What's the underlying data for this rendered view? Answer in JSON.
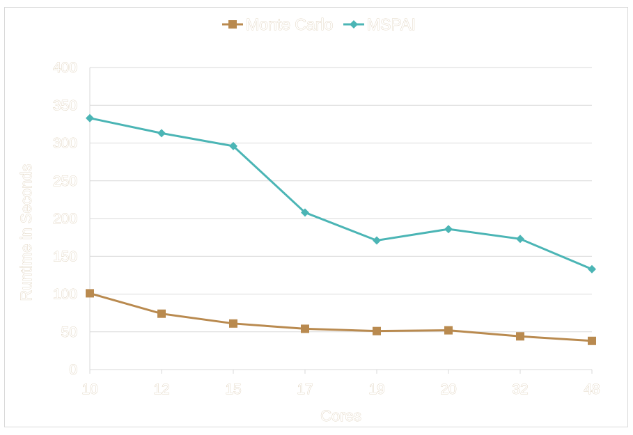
{
  "chart_data": {
    "type": "line",
    "categories": [
      "10",
      "12",
      "15",
      "17",
      "19",
      "20",
      "32",
      "48"
    ],
    "series": [
      {
        "name": "Monte Carlo",
        "color": "#b98a4f",
        "marker": "square",
        "values": [
          101,
          74,
          61,
          54,
          51,
          52,
          44,
          38
        ]
      },
      {
        "name": "MSPAI",
        "color": "#4bb5b5",
        "marker": "diamond",
        "values": [
          333,
          313,
          296,
          208,
          171,
          186,
          173,
          133
        ]
      }
    ],
    "title": "",
    "xlabel": "Cores",
    "ylabel": "Runtime in Seconds",
    "ylim": [
      0,
      400
    ],
    "yticks": [
      "0",
      "50",
      "100",
      "150",
      "200",
      "250",
      "300",
      "350",
      "400"
    ],
    "grid": true,
    "legend_position": "top-center"
  }
}
